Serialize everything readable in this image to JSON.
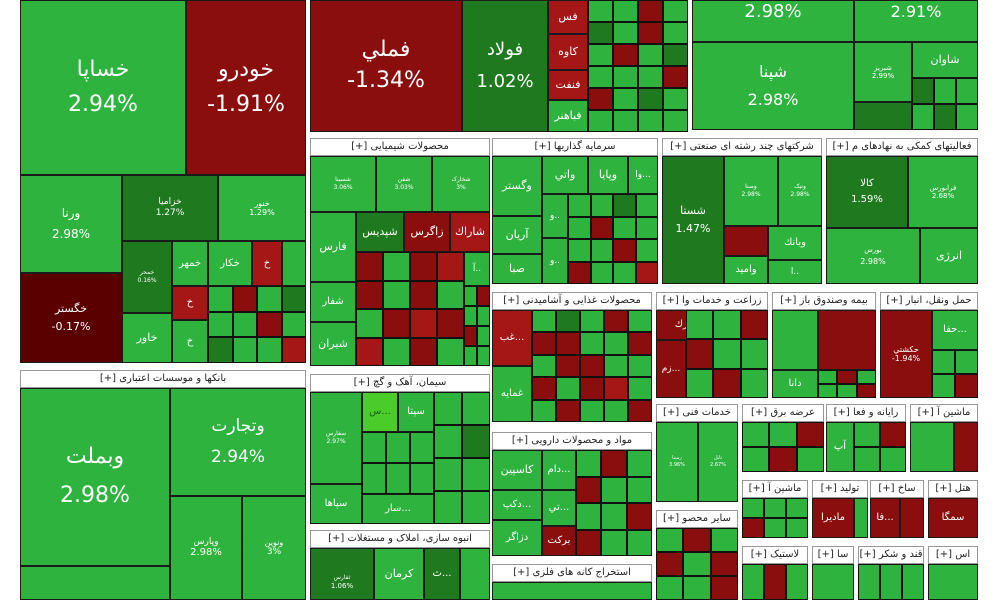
{
  "colors": {
    "green": "#2eb33e",
    "dark_green": "#1f7a1f",
    "light_green": "#4ccc2a",
    "red": "#8b0e0e",
    "dark_red": "#5a0000"
  },
  "sectors": {
    "banks": "[+] بانکها و موسسات اعتباری",
    "chemical": "[+] محصولات شیمیایی",
    "investments": "[+] سرمایه گذاریها",
    "multi_industry": "[+] شرکتهای چند رشته ای صنعتی",
    "auxiliary": "[+] فعالیتهای کمکی به نهادهای م",
    "food": "[+] محصولات غذایی و آشامیدنی",
    "agriculture": "[+] زراعت و خدمات وا",
    "fund": "[+] بیمه وصندوق باز",
    "transport": "[+] حمل ونقل، انبار",
    "cement": "[+] سیمان، آهک و گچ",
    "pharma": "[+] مواد و محصولات دارویی",
    "construction": "[+] انبوه سازی، املاک و مستغلات",
    "mining": "[+] استخراج کانه های فلزی",
    "tech": "[+] خدمات فنی",
    "power": "[+] عرضه برق",
    "computer": "[+] رایانه و فعا",
    "machinery": "[+] ماشین آ",
    "other": "[+] سایر محصو",
    "machinery2": "[+] ماشین آ",
    "production": "[+] تولید",
    "textile": "[+] ساخ",
    "hotel": "[+] هتل",
    "plastic": "[+] لاستیک",
    "sugar": "[+] قند و شکر",
    "other2": "[+] سا",
    "oil": "[+] اس"
  },
  "tiles": {
    "khesapa": {
      "name": "خساپا",
      "pct": "2.94%"
    },
    "khodro": {
      "name": "خودرو",
      "pct": "-1.91%"
    },
    "fameli": {
      "name": "فملي",
      "pct": "-1.34%"
    },
    "foolad": {
      "name": "فولاد",
      "pct": "1.02%"
    },
    "top_right1": {
      "pct": "2.98%"
    },
    "top_right2": {
      "pct": "2.91%"
    },
    "shepna": {
      "name": "شپنا",
      "pct": "2.98%"
    },
    "shavan": {
      "name": "شاوان"
    },
    "shebriz": {
      "name": "شبریز",
      "pct": "2.99%"
    },
    "fas": {
      "name": "فس"
    },
    "kave": {
      "name": "کاوه"
    },
    "fanft": {
      "name": "فنفت"
    },
    "fabahonar": {
      "name": "فباهنر"
    },
    "varna": {
      "name": "ورنا",
      "pct": "2.98%"
    },
    "khazamia": {
      "name": "خزامیا",
      "pct": "1.27%"
    },
    "khanur": {
      "name": "خنور",
      "pct": "1.29%"
    },
    "khegostar": {
      "name": "خگستر",
      "pct": "-0.17%"
    },
    "khavar": {
      "name": "خاور"
    },
    "khamehr": {
      "name": "خمهر"
    },
    "khakar": {
      "name": "خكار"
    },
    "khamohr": {
      "name": "خمحر",
      "pct": "0.16%"
    },
    "kh1": {
      "name": "خ"
    },
    "kh2": {
      "name": "خ"
    },
    "kh3": {
      "name": "خ"
    },
    "vebmelat": {
      "name": "وبملت",
      "pct": "2.98%"
    },
    "vetejarat": {
      "name": "وتجارت",
      "pct": "2.94%"
    },
    "vaparis": {
      "name": "وپارس",
      "pct": "2.98%"
    },
    "vanovin": {
      "name": "ونوین",
      "pct": "3%"
    },
    "shesina": {
      "name": "شسینا",
      "pct": "3.06%"
    },
    "shafan": {
      "name": "شفن",
      "pct": "3.03%"
    },
    "shekhark": {
      "name": "شخارک",
      "pct": "3%"
    },
    "fars": {
      "name": "فارس"
    },
    "shepdis": {
      "name": "شپدیس"
    },
    "zagros": {
      "name": "زاگرس"
    },
    "sharak": {
      "name": "شاراك"
    },
    "shafar": {
      "name": "شفار"
    },
    "shiran": {
      "name": "شیران"
    },
    "a_dot": {
      "name": "آ.."
    },
    "vegostar": {
      "name": "وگستر"
    },
    "vati": {
      "name": "واتي"
    },
    "vapaya": {
      "name": "وپایا"
    },
    "vaa": {
      "name": "وا..."
    },
    "arian": {
      "name": "آریان"
    },
    "saba": {
      "name": "صبا"
    },
    "vav1": {
      "name": "و.."
    },
    "vav2": {
      "name": "و.."
    },
    "vaa2": {
      "name": "وا..."
    },
    "shasta": {
      "name": "شستا",
      "pct": "1.47%"
    },
    "vasapa": {
      "name": "وصنا",
      "pct": "2.98%"
    },
    "vanik": {
      "name": "ونیک",
      "pct": "2.98%"
    },
    "vabank": {
      "name": "وبانك"
    },
    "vamid": {
      "name": "واميد"
    },
    "vapa": {
      "name": "ا.."
    },
    "kala": {
      "name": "کالا",
      "pct": "1.59%"
    },
    "faravari": {
      "name": "فرابورس",
      "pct": "2.68%"
    },
    "bourse": {
      "name": "بورس",
      "pct": "2.98%"
    },
    "anerji": {
      "name": "انرژی"
    },
    "ghab": {
      "name": "غب..."
    },
    "ghamaye": {
      "name": "غمايه"
    },
    "zak": {
      "name": "زك..."
    },
    "zam": {
      "name": "زم..."
    },
    "dana": {
      "name": "دانا"
    },
    "hafa": {
      "name": "حفا..."
    },
    "hakeshti": {
      "name": "حكشتي",
      "pct": "-1.94%"
    },
    "seseta": {
      "name": "سپتا"
    },
    "sefars": {
      "name": "سفارس",
      "pct": "2.97%"
    },
    "sepaha": {
      "name": "سپاها"
    },
    "sar": {
      "name": "سار..."
    },
    "s_one": {
      "name": "س..."
    },
    "kaspian": {
      "name": "كاسپين"
    },
    "dam": {
      "name": "دام..."
    },
    "dekap": {
      "name": "دكپ..."
    },
    "dezagar": {
      "name": "دزاگر"
    },
    "barekat": {
      "name": "بركت"
    },
    "tey": {
      "name": "تي..."
    },
    "kerman": {
      "name": "كرمان"
    },
    "th": {
      "name": "ث..."
    },
    "ofarabs": {
      "name": "ثفارس",
      "pct": "1.06%"
    },
    "rempna": {
      "name": "رمپنا",
      "pct": "3.96%"
    },
    "tabel": {
      "name": "تابل",
      "pct": "2.67%"
    },
    "ap": {
      "name": "آپ"
    },
    "madira": {
      "name": "ماديرا"
    },
    "fa": {
      "name": "فا..."
    },
    "semga": {
      "name": "سمگا"
    }
  }
}
